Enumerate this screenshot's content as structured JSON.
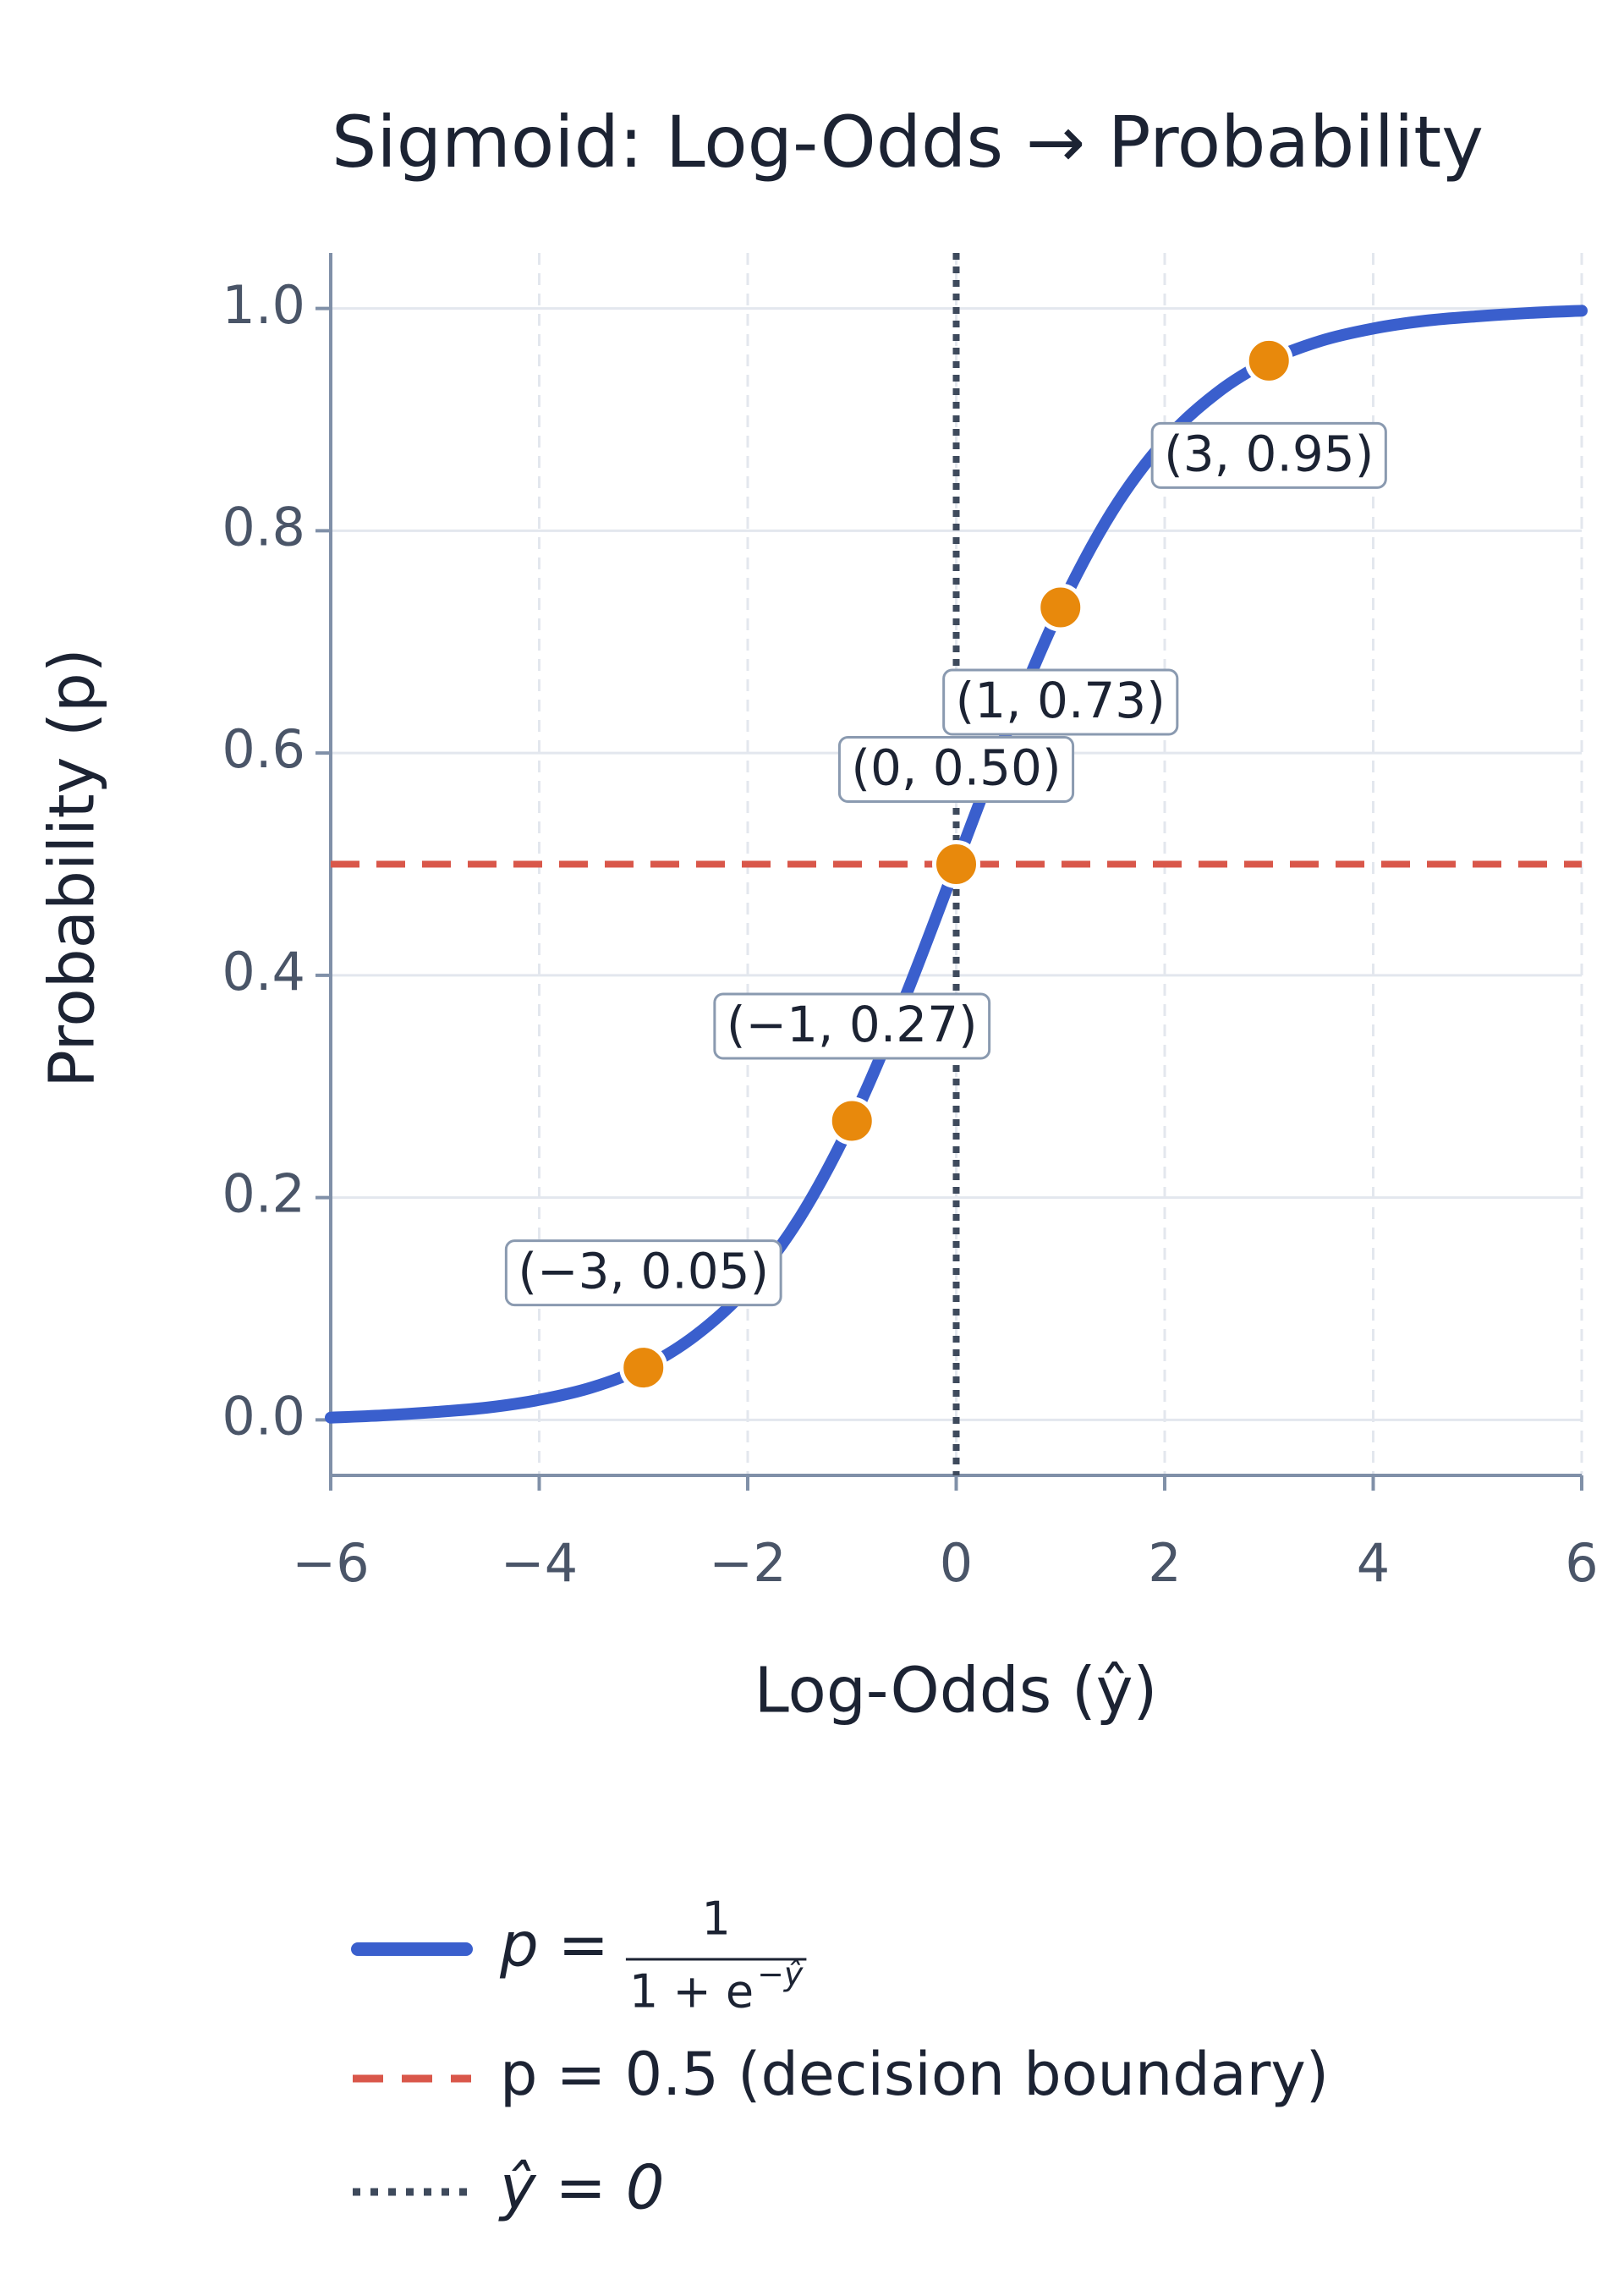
{
  "chart_data": {
    "type": "line",
    "title": "Sigmoid: Log-Odds → Probability",
    "x_label": "Log-Odds (ŷ)",
    "y_label": "Probability (p)",
    "x": [
      -6,
      -5.5,
      -5,
      -4.5,
      -4,
      -3.5,
      -3,
      -2.5,
      -2,
      -1.5,
      -1,
      -0.5,
      0,
      0.5,
      1,
      1.5,
      2,
      2.5,
      3,
      3.5,
      4,
      4.5,
      5,
      5.5,
      6
    ],
    "series": [
      {
        "color": "#3a5fcd",
        "values": [
          0.002,
          0.004,
          0.007,
          0.011,
          0.018,
          0.029,
          0.047,
          0.076,
          0.119,
          0.182,
          0.269,
          0.378,
          0.5,
          0.622,
          0.731,
          0.818,
          0.881,
          0.924,
          0.953,
          0.971,
          0.982,
          0.989,
          0.993,
          0.996,
          0.998
        ]
      },
      {
        "type": "scatter",
        "color": "#e8890c",
        "x": [
          -3,
          -1,
          0,
          1,
          3
        ],
        "values": [
          0.047,
          0.269,
          0.5,
          0.731,
          0.953
        ],
        "value_labels": [
          "(−3, 0.05)",
          "(−1, 0.27)",
          "(0, 0.50)",
          "(1, 0.73)",
          "(3, 0.95)"
        ]
      }
    ],
    "hlines": [
      {
        "y": 0.5,
        "name": "p = 0.5 (decision boundary)",
        "color": "#d9574a"
      }
    ],
    "vlines": [
      {
        "x": 0,
        "name": "ŷ = 0",
        "color": "#3e4a5c"
      }
    ],
    "legend_formula": {
      "lhs": "p =",
      "numerator": "1",
      "denominator": "1 + e",
      "exponent": "−ŷ"
    },
    "xlim": [
      -6,
      6
    ],
    "ylim": [
      -0.05,
      1.05
    ],
    "xticks": [
      {
        "value": -6,
        "label": "−6"
      },
      {
        "value": -4,
        "label": "−4"
      },
      {
        "value": -2,
        "label": "−2"
      },
      0,
      2,
      4,
      6
    ],
    "yticks": [
      {
        "value": 0,
        "label": "0.0"
      },
      0.2,
      0.4,
      0.6,
      0.8,
      {
        "value": 1,
        "label": "1.0"
      }
    ],
    "grid": true,
    "legend": "lower center"
  }
}
